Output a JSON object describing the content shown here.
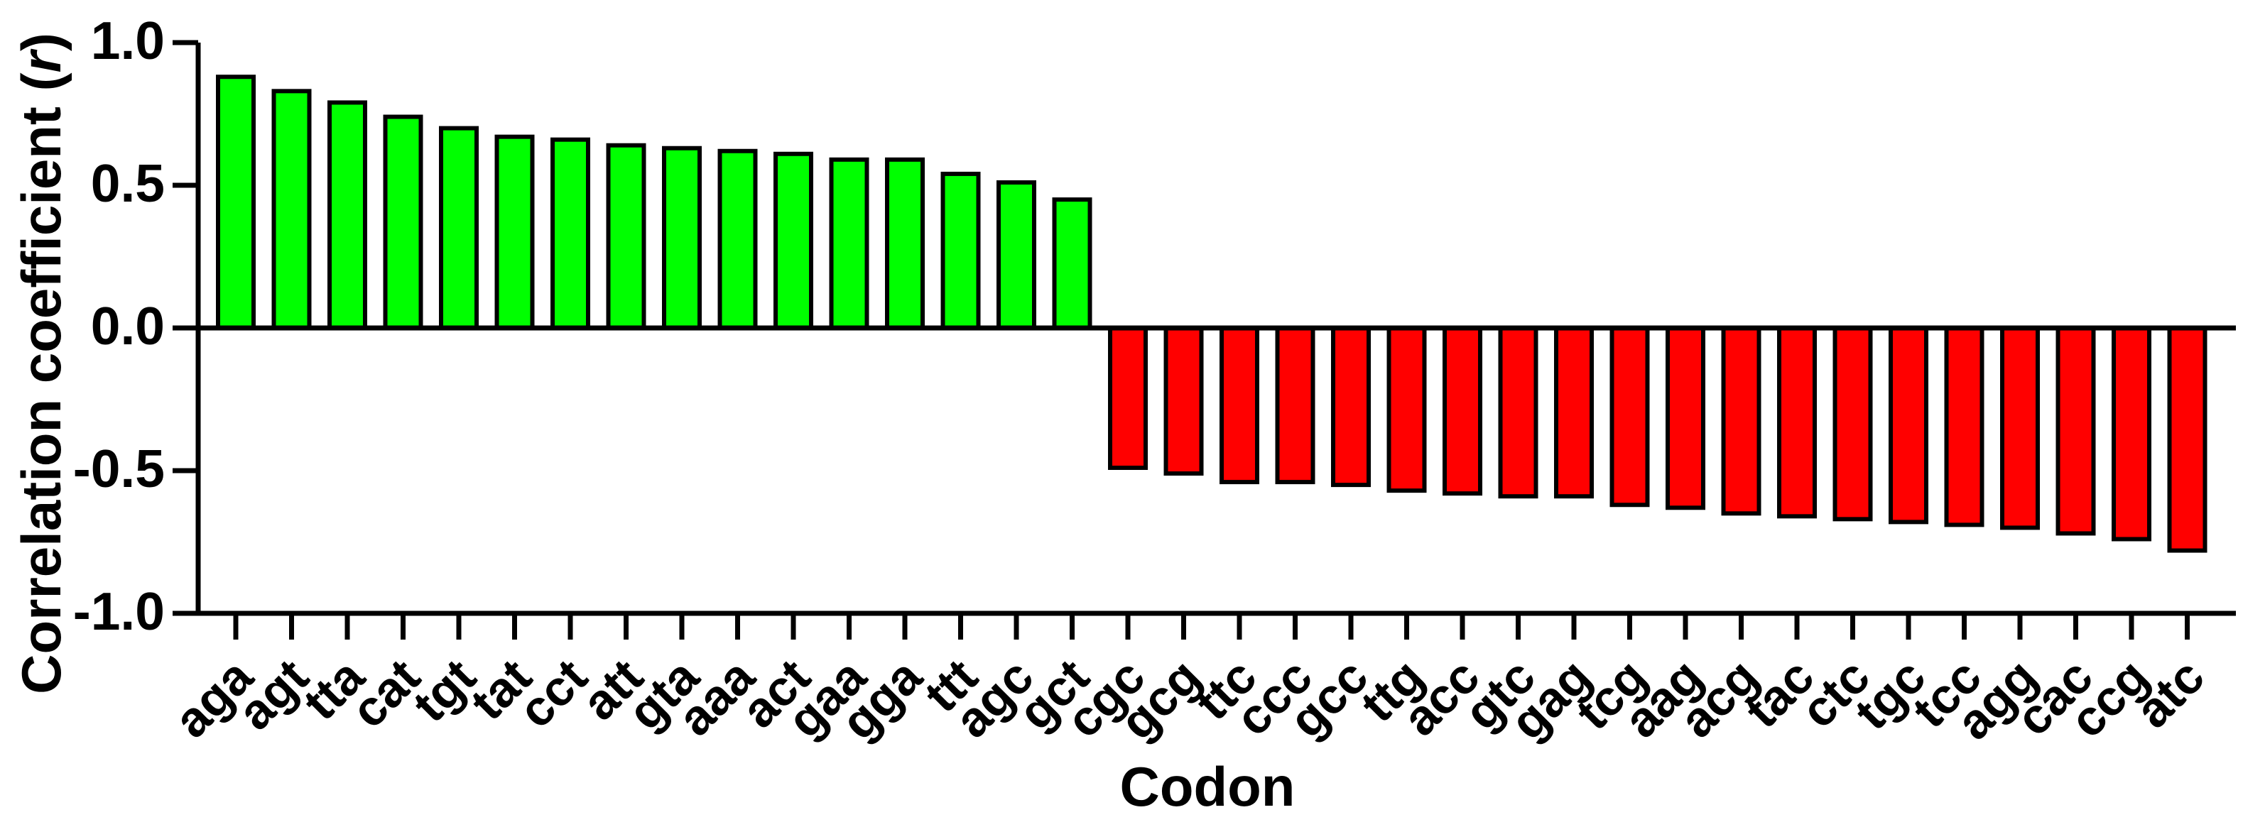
{
  "figure": {
    "xlabel": "Codon",
    "ylabel_prefix": "Correlation coefficient (",
    "ylabel_italic": "r",
    "ylabel_suffix": ")"
  },
  "chart_data": {
    "type": "bar",
    "title": "",
    "xlabel": "Codon",
    "ylabel": "Correlation coefficient (r)",
    "ylim": [
      -1.0,
      1.0
    ],
    "yticks": [
      1.0,
      0.5,
      0.0,
      -0.5,
      -1.0
    ],
    "ytick_labels": [
      "1.0",
      "0.5",
      "0.0",
      "-0.5",
      "-1.0"
    ],
    "grid": false,
    "legend_position": "none",
    "bar_outline_color": "#000000",
    "positive_color": "#00ff00",
    "negative_color": "#ff0000",
    "categories": [
      "aga",
      "agt",
      "tta",
      "cat",
      "tgt",
      "tat",
      "cct",
      "att",
      "gta",
      "aaa",
      "act",
      "gaa",
      "gga",
      "ttt",
      "agc",
      "gct",
      "cgc",
      "gcg",
      "ttc",
      "ccc",
      "gcc",
      "ttg",
      "acc",
      "gtc",
      "gag",
      "tcg",
      "aag",
      "acg",
      "tac",
      "ctc",
      "tgc",
      "tcc",
      "agg",
      "cac",
      "ccg",
      "atc"
    ],
    "values": [
      0.88,
      0.83,
      0.79,
      0.74,
      0.7,
      0.67,
      0.66,
      0.64,
      0.63,
      0.62,
      0.61,
      0.59,
      0.59,
      0.54,
      0.51,
      0.45,
      -0.49,
      -0.51,
      -0.54,
      -0.54,
      -0.55,
      -0.57,
      -0.58,
      -0.59,
      -0.59,
      -0.62,
      -0.63,
      -0.65,
      -0.66,
      -0.67,
      -0.68,
      -0.69,
      -0.7,
      -0.72,
      -0.74,
      -0.78
    ]
  }
}
